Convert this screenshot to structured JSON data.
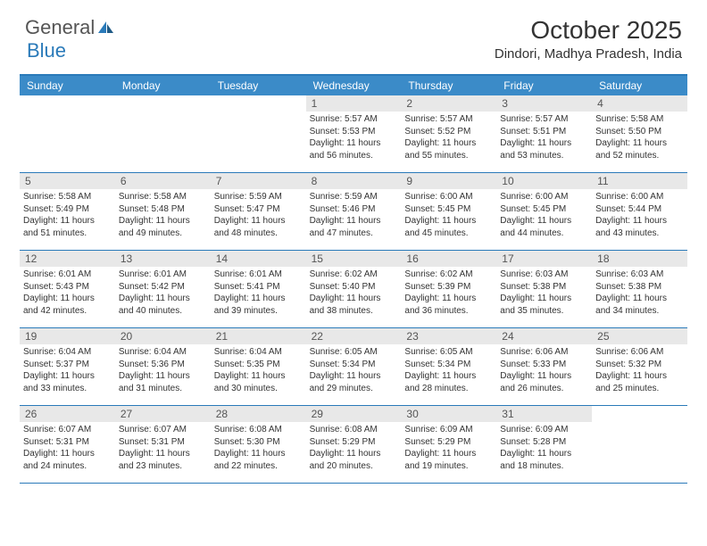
{
  "logo": {
    "text1": "General",
    "text2": "Blue"
  },
  "title": "October 2025",
  "location": "Dindori, Madhya Pradesh, India",
  "colors": {
    "header_bg": "#3b8bc8",
    "border": "#2a7ab9",
    "daynum_bg": "#e8e8e8",
    "text": "#333333"
  },
  "dayNames": [
    "Sunday",
    "Monday",
    "Tuesday",
    "Wednesday",
    "Thursday",
    "Friday",
    "Saturday"
  ],
  "weeks": [
    [
      {
        "n": "",
        "sr": "",
        "ss": "",
        "dl": ""
      },
      {
        "n": "",
        "sr": "",
        "ss": "",
        "dl": ""
      },
      {
        "n": "",
        "sr": "",
        "ss": "",
        "dl": ""
      },
      {
        "n": "1",
        "sr": "5:57 AM",
        "ss": "5:53 PM",
        "dl": "11 hours and 56 minutes."
      },
      {
        "n": "2",
        "sr": "5:57 AM",
        "ss": "5:52 PM",
        "dl": "11 hours and 55 minutes."
      },
      {
        "n": "3",
        "sr": "5:57 AM",
        "ss": "5:51 PM",
        "dl": "11 hours and 53 minutes."
      },
      {
        "n": "4",
        "sr": "5:58 AM",
        "ss": "5:50 PM",
        "dl": "11 hours and 52 minutes."
      }
    ],
    [
      {
        "n": "5",
        "sr": "5:58 AM",
        "ss": "5:49 PM",
        "dl": "11 hours and 51 minutes."
      },
      {
        "n": "6",
        "sr": "5:58 AM",
        "ss": "5:48 PM",
        "dl": "11 hours and 49 minutes."
      },
      {
        "n": "7",
        "sr": "5:59 AM",
        "ss": "5:47 PM",
        "dl": "11 hours and 48 minutes."
      },
      {
        "n": "8",
        "sr": "5:59 AM",
        "ss": "5:46 PM",
        "dl": "11 hours and 47 minutes."
      },
      {
        "n": "9",
        "sr": "6:00 AM",
        "ss": "5:45 PM",
        "dl": "11 hours and 45 minutes."
      },
      {
        "n": "10",
        "sr": "6:00 AM",
        "ss": "5:45 PM",
        "dl": "11 hours and 44 minutes."
      },
      {
        "n": "11",
        "sr": "6:00 AM",
        "ss": "5:44 PM",
        "dl": "11 hours and 43 minutes."
      }
    ],
    [
      {
        "n": "12",
        "sr": "6:01 AM",
        "ss": "5:43 PM",
        "dl": "11 hours and 42 minutes."
      },
      {
        "n": "13",
        "sr": "6:01 AM",
        "ss": "5:42 PM",
        "dl": "11 hours and 40 minutes."
      },
      {
        "n": "14",
        "sr": "6:01 AM",
        "ss": "5:41 PM",
        "dl": "11 hours and 39 minutes."
      },
      {
        "n": "15",
        "sr": "6:02 AM",
        "ss": "5:40 PM",
        "dl": "11 hours and 38 minutes."
      },
      {
        "n": "16",
        "sr": "6:02 AM",
        "ss": "5:39 PM",
        "dl": "11 hours and 36 minutes."
      },
      {
        "n": "17",
        "sr": "6:03 AM",
        "ss": "5:38 PM",
        "dl": "11 hours and 35 minutes."
      },
      {
        "n": "18",
        "sr": "6:03 AM",
        "ss": "5:38 PM",
        "dl": "11 hours and 34 minutes."
      }
    ],
    [
      {
        "n": "19",
        "sr": "6:04 AM",
        "ss": "5:37 PM",
        "dl": "11 hours and 33 minutes."
      },
      {
        "n": "20",
        "sr": "6:04 AM",
        "ss": "5:36 PM",
        "dl": "11 hours and 31 minutes."
      },
      {
        "n": "21",
        "sr": "6:04 AM",
        "ss": "5:35 PM",
        "dl": "11 hours and 30 minutes."
      },
      {
        "n": "22",
        "sr": "6:05 AM",
        "ss": "5:34 PM",
        "dl": "11 hours and 29 minutes."
      },
      {
        "n": "23",
        "sr": "6:05 AM",
        "ss": "5:34 PM",
        "dl": "11 hours and 28 minutes."
      },
      {
        "n": "24",
        "sr": "6:06 AM",
        "ss": "5:33 PM",
        "dl": "11 hours and 26 minutes."
      },
      {
        "n": "25",
        "sr": "6:06 AM",
        "ss": "5:32 PM",
        "dl": "11 hours and 25 minutes."
      }
    ],
    [
      {
        "n": "26",
        "sr": "6:07 AM",
        "ss": "5:31 PM",
        "dl": "11 hours and 24 minutes."
      },
      {
        "n": "27",
        "sr": "6:07 AM",
        "ss": "5:31 PM",
        "dl": "11 hours and 23 minutes."
      },
      {
        "n": "28",
        "sr": "6:08 AM",
        "ss": "5:30 PM",
        "dl": "11 hours and 22 minutes."
      },
      {
        "n": "29",
        "sr": "6:08 AM",
        "ss": "5:29 PM",
        "dl": "11 hours and 20 minutes."
      },
      {
        "n": "30",
        "sr": "6:09 AM",
        "ss": "5:29 PM",
        "dl": "11 hours and 19 minutes."
      },
      {
        "n": "31",
        "sr": "6:09 AM",
        "ss": "5:28 PM",
        "dl": "11 hours and 18 minutes."
      },
      {
        "n": "",
        "sr": "",
        "ss": "",
        "dl": ""
      }
    ]
  ],
  "labels": {
    "sunrise": "Sunrise:",
    "sunset": "Sunset:",
    "daylight": "Daylight:"
  }
}
